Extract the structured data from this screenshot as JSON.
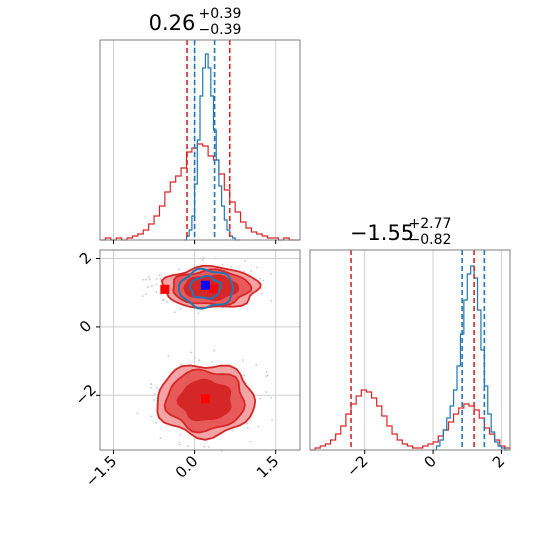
{
  "colors": {
    "red": "#d62728",
    "blue": "#1f77b4",
    "light_red": "#f4a4a4",
    "mid_red": "#e85a5a",
    "grid": "#cfcfcf"
  },
  "chart_data": [
    {
      "type": "histogram",
      "panel": "top-left",
      "title": {
        "value": "0.26",
        "plus": "+0.39",
        "minus": "−0.39"
      },
      "xlim": [
        -1.75,
        1.95
      ],
      "ylim": [
        0,
        1.0
      ],
      "grid": true,
      "series": [
        {
          "color": "red",
          "bins": [
            -1.75,
            -1.65,
            -1.55,
            -1.45,
            -1.35,
            -1.25,
            -1.15,
            -1.05,
            -0.95,
            -0.85,
            -0.75,
            -0.65,
            -0.55,
            -0.45,
            -0.35,
            -0.25,
            -0.15,
            -0.05,
            0.05,
            0.15,
            0.25,
            0.35,
            0.45,
            0.55,
            0.65,
            0.75,
            0.85,
            0.95,
            1.05,
            1.15,
            1.25,
            1.35,
            1.45,
            1.55,
            1.65,
            1.75,
            1.85,
            1.95
          ],
          "counts": [
            0.0,
            0.01,
            0.0,
            0.01,
            0.0,
            0.01,
            0.02,
            0.03,
            0.05,
            0.08,
            0.12,
            0.17,
            0.24,
            0.29,
            0.32,
            0.36,
            0.44,
            0.46,
            0.48,
            0.47,
            0.42,
            0.4,
            0.33,
            0.25,
            0.19,
            0.14,
            0.09,
            0.06,
            0.04,
            0.03,
            0.02,
            0.01,
            0.01,
            0.0,
            0.01,
            0.0,
            0.0
          ]
        },
        {
          "color": "blue",
          "bins": [
            -0.2,
            -0.15,
            -0.1,
            -0.05,
            0.0,
            0.05,
            0.1,
            0.15,
            0.2,
            0.25,
            0.3,
            0.35,
            0.4,
            0.45,
            0.5,
            0.55,
            0.6,
            0.65,
            0.7,
            0.75,
            0.8,
            0.85
          ],
          "counts": [
            0.0,
            0.02,
            0.05,
            0.12,
            0.28,
            0.5,
            0.72,
            0.86,
            0.93,
            0.86,
            0.72,
            0.55,
            0.4,
            0.27,
            0.17,
            0.1,
            0.05,
            0.02,
            0.01,
            0.0,
            0.0
          ]
        }
      ],
      "vlines": [
        {
          "x": -0.14,
          "color": "red"
        },
        {
          "x": 0.65,
          "color": "red"
        },
        {
          "x": 0.0,
          "color": "blue"
        },
        {
          "x": 0.37,
          "color": "blue"
        }
      ]
    },
    {
      "type": "contour",
      "panel": "bottom-left",
      "xlim": [
        -1.75,
        1.95
      ],
      "ylim": [
        -3.6,
        2.25
      ],
      "xticks": [
        -1.5,
        0.0,
        1.5
      ],
      "xtick_labels": [
        "−1.5",
        "0.0",
        "1.5"
      ],
      "yticks": [
        -2,
        0,
        2
      ],
      "ytick_labels": [
        "−2",
        "0",
        "2"
      ],
      "grid": true,
      "red_clusters": [
        {
          "cx": 0.3,
          "cy": 1.15,
          "levels": [
            [
              0.88,
              0.6
            ],
            [
              0.72,
              0.5
            ],
            [
              0.5,
              0.34
            ]
          ]
        },
        {
          "cx": 0.2,
          "cy": -2.15,
          "levels": [
            [
              0.9,
              1.05
            ],
            [
              0.72,
              0.88
            ],
            [
              0.48,
              0.58
            ]
          ]
        }
      ],
      "blue_contours": [
        {
          "cx": 0.22,
          "cy": 1.12,
          "rx": 0.5,
          "ry": 0.55
        },
        {
          "cx": 0.2,
          "cy": 1.15,
          "rx": 0.28,
          "ry": 0.32
        }
      ],
      "markers": [
        {
          "x": -0.55,
          "y": 1.1,
          "color": "red"
        },
        {
          "x": 0.35,
          "y": 1.12,
          "color": "red"
        },
        {
          "x": 0.2,
          "y": -2.1,
          "color": "red"
        },
        {
          "x": 0.2,
          "y": 1.22,
          "color": "blue"
        }
      ]
    },
    {
      "type": "histogram",
      "panel": "bottom-right",
      "title": {
        "value": "−1.55",
        "plus": "+2.77",
        "minus": "−0.82"
      },
      "xlim": [
        -3.6,
        2.25
      ],
      "ylim": [
        0,
        1.0
      ],
      "xticks": [
        -2,
        0,
        2
      ],
      "xtick_labels": [
        "−2",
        "0",
        "2"
      ],
      "grid": true,
      "series": [
        {
          "color": "red",
          "bins": [
            -3.6,
            -3.45,
            -3.3,
            -3.15,
            -3.0,
            -2.85,
            -2.7,
            -2.55,
            -2.4,
            -2.25,
            -2.1,
            -1.95,
            -1.8,
            -1.65,
            -1.5,
            -1.35,
            -1.2,
            -1.05,
            -0.9,
            -0.75,
            -0.6,
            -0.45,
            -0.3,
            -0.15,
            0.0,
            0.15,
            0.3,
            0.45,
            0.6,
            0.75,
            0.9,
            1.05,
            1.2,
            1.35,
            1.5,
            1.65,
            1.8,
            1.95,
            2.1,
            2.25
          ],
          "counts": [
            0.0,
            0.01,
            0.02,
            0.03,
            0.05,
            0.08,
            0.12,
            0.18,
            0.23,
            0.27,
            0.3,
            0.29,
            0.26,
            0.22,
            0.17,
            0.12,
            0.08,
            0.05,
            0.03,
            0.02,
            0.01,
            0.01,
            0.02,
            0.03,
            0.04,
            0.07,
            0.1,
            0.14,
            0.18,
            0.21,
            0.23,
            0.22,
            0.2,
            0.16,
            0.11,
            0.08,
            0.05,
            0.02,
            0.01
          ]
        },
        {
          "color": "blue",
          "bins": [
            0.0,
            0.1,
            0.2,
            0.3,
            0.4,
            0.5,
            0.6,
            0.7,
            0.8,
            0.9,
            1.0,
            1.1,
            1.2,
            1.3,
            1.4,
            1.5,
            1.6,
            1.7,
            1.8,
            1.9,
            2.0,
            2.1,
            2.2
          ],
          "counts": [
            0.0,
            0.02,
            0.05,
            0.1,
            0.16,
            0.22,
            0.3,
            0.42,
            0.58,
            0.75,
            0.88,
            0.92,
            0.86,
            0.7,
            0.5,
            0.32,
            0.18,
            0.09,
            0.04,
            0.02,
            0.01,
            0.0
          ]
        }
      ],
      "vlines": [
        {
          "x": -2.4,
          "color": "red"
        },
        {
          "x": 1.2,
          "color": "red"
        },
        {
          "x": 0.85,
          "color": "blue"
        },
        {
          "x": 1.5,
          "color": "blue"
        }
      ]
    }
  ]
}
